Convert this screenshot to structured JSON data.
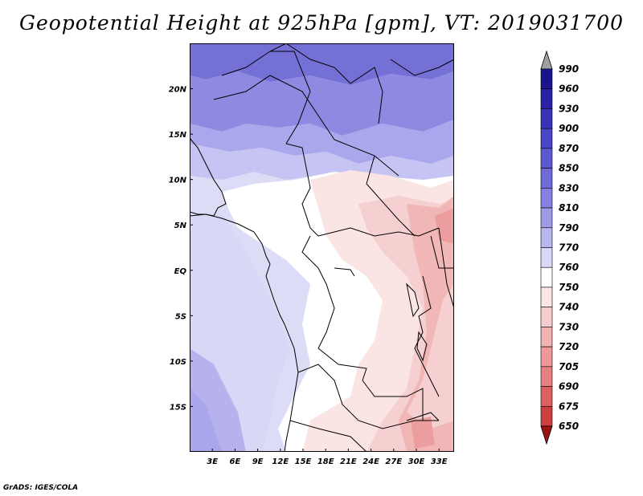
{
  "title": "Geopotential Height at 925hPa [gpm], VT: 2019031700",
  "footer": "GrADS: IGES/COLA",
  "map": {
    "lat_labels": [
      "20N",
      "15N",
      "10N",
      "5N",
      "EQ",
      "5S",
      "10S",
      "15S"
    ],
    "lon_labels": [
      "3E",
      "6E",
      "9E",
      "12E",
      "15E",
      "18E",
      "21E",
      "24E",
      "27E",
      "30E",
      "33E"
    ],
    "lat_range": [
      -20,
      25
    ],
    "lon_range": [
      0,
      35
    ]
  },
  "colorbar": {
    "levels": [
      "990",
      "960",
      "930",
      "900",
      "870",
      "850",
      "830",
      "810",
      "790",
      "770",
      "760",
      "750",
      "740",
      "730",
      "720",
      "705",
      "690",
      "675",
      "650"
    ],
    "colors": [
      "#1a148a",
      "#2a22a6",
      "#3a33b8",
      "#4a45c6",
      "#5b58d0",
      "#6f6cd8",
      "#8581e0",
      "#9e9be8",
      "#b8b6ef",
      "#d9d9f7",
      "#ffffff",
      "#fbe6e6",
      "#f6cccc",
      "#f2b3b3",
      "#ee9999",
      "#e58080",
      "#dc6060",
      "#cc4040",
      "#b22222"
    ],
    "top_arrow_color": "#a0a0a0",
    "bottom_arrow_color": "#9a1414"
  }
}
